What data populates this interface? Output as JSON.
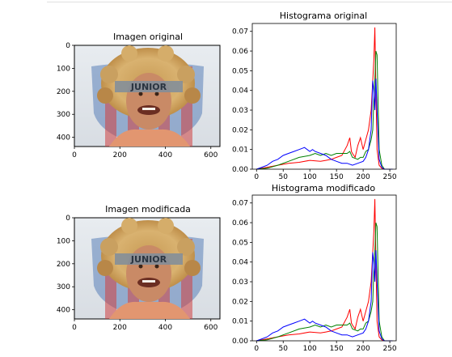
{
  "chart_data": [
    {
      "type": "image",
      "title": "Imagen original",
      "xticks": [
        0,
        200,
        400,
        600
      ],
      "yticks": [
        0,
        100,
        200,
        300,
        400
      ],
      "xlim": [
        0,
        640
      ],
      "ylim": [
        0,
        440
      ]
    },
    {
      "type": "line",
      "title": "Histograma original",
      "xticks": [
        0,
        50,
        100,
        150,
        200,
        250
      ],
      "yticks": [
        0.0,
        0.01,
        0.02,
        0.03,
        0.04,
        0.05,
        0.06,
        0.07
      ],
      "xlim": [
        -8,
        262
      ],
      "ylim": [
        0,
        0.074
      ],
      "series": [
        {
          "color": "#ff0000",
          "x": [
            0,
            20,
            40,
            60,
            80,
            100,
            120,
            130,
            140,
            150,
            160,
            170,
            175,
            178,
            180,
            185,
            190,
            195,
            200,
            205,
            210,
            215,
            218,
            220,
            222,
            224,
            226,
            230,
            235,
            240,
            255
          ],
          "values": [
            0,
            0.001,
            0.002,
            0.003,
            0.0035,
            0.0045,
            0.004,
            0.0045,
            0.005,
            0.006,
            0.007,
            0.012,
            0.016,
            0.009,
            0.008,
            0.006,
            0.012,
            0.016,
            0.01,
            0.015,
            0.02,
            0.03,
            0.045,
            0.055,
            0.072,
            0.04,
            0.01,
            0.002,
            0.0005,
            0,
            0
          ]
        },
        {
          "color": "#008000",
          "x": [
            0,
            20,
            40,
            60,
            80,
            100,
            110,
            120,
            130,
            140,
            150,
            160,
            170,
            175,
            180,
            190,
            195,
            200,
            205,
            210,
            215,
            218,
            220,
            222,
            224,
            226,
            230,
            235,
            240,
            255
          ],
          "values": [
            0,
            0.0005,
            0.002,
            0.004,
            0.006,
            0.007,
            0.008,
            0.007,
            0.008,
            0.007,
            0.008,
            0.008,
            0.008,
            0.009,
            0.006,
            0.005,
            0.006,
            0.006,
            0.009,
            0.01,
            0.015,
            0.02,
            0.035,
            0.045,
            0.06,
            0.058,
            0.01,
            0.002,
            0,
            0
          ]
        },
        {
          "color": "#0000ff",
          "x": [
            0,
            10,
            20,
            30,
            40,
            50,
            60,
            70,
            80,
            90,
            100,
            105,
            110,
            120,
            130,
            140,
            150,
            160,
            170,
            180,
            190,
            200,
            205,
            210,
            215,
            218,
            220,
            222,
            224,
            226,
            230,
            235,
            240,
            255
          ],
          "values": [
            0,
            0.001,
            0.002,
            0.004,
            0.005,
            0.007,
            0.008,
            0.009,
            0.01,
            0.011,
            0.009,
            0.01,
            0.009,
            0.008,
            0.007,
            0.005,
            0.004,
            0.003,
            0.003,
            0.002,
            0.003,
            0.004,
            0.006,
            0.01,
            0.02,
            0.045,
            0.04,
            0.03,
            0.046,
            0.03,
            0.005,
            0.001,
            0,
            0
          ]
        }
      ]
    },
    {
      "type": "image",
      "title": "Imagen modificada",
      "xticks": [
        0,
        200,
        400,
        600
      ],
      "yticks": [
        0,
        100,
        200,
        300,
        400
      ],
      "xlim": [
        0,
        640
      ],
      "ylim": [
        0,
        440
      ]
    },
    {
      "type": "line",
      "title": "Histograma modificado",
      "xticks": [
        0,
        50,
        100,
        150,
        200,
        250
      ],
      "yticks": [
        0.0,
        0.01,
        0.02,
        0.03,
        0.04,
        0.05,
        0.06,
        0.07
      ],
      "xlim": [
        -8,
        262
      ],
      "ylim": [
        0,
        0.074
      ],
      "series": [
        {
          "color": "#ff0000",
          "x": [
            0,
            20,
            40,
            60,
            80,
            100,
            120,
            130,
            140,
            150,
            160,
            170,
            175,
            178,
            180,
            185,
            190,
            195,
            200,
            205,
            210,
            215,
            218,
            220,
            222,
            224,
            226,
            230,
            235,
            240,
            255
          ],
          "values": [
            0,
            0.001,
            0.002,
            0.003,
            0.0035,
            0.0045,
            0.004,
            0.0045,
            0.005,
            0.006,
            0.007,
            0.012,
            0.016,
            0.009,
            0.008,
            0.006,
            0.012,
            0.016,
            0.01,
            0.015,
            0.02,
            0.03,
            0.045,
            0.055,
            0.072,
            0.04,
            0.01,
            0.002,
            0.0005,
            0,
            0
          ]
        },
        {
          "color": "#008000",
          "x": [
            0,
            20,
            40,
            60,
            80,
            100,
            110,
            120,
            130,
            140,
            150,
            160,
            170,
            175,
            180,
            190,
            195,
            200,
            205,
            210,
            215,
            218,
            220,
            222,
            224,
            226,
            230,
            235,
            240,
            255
          ],
          "values": [
            0,
            0.0005,
            0.002,
            0.004,
            0.006,
            0.007,
            0.008,
            0.007,
            0.008,
            0.007,
            0.008,
            0.008,
            0.008,
            0.009,
            0.006,
            0.005,
            0.006,
            0.006,
            0.009,
            0.01,
            0.015,
            0.02,
            0.035,
            0.045,
            0.06,
            0.058,
            0.01,
            0.002,
            0,
            0
          ]
        },
        {
          "color": "#0000ff",
          "x": [
            0,
            10,
            20,
            30,
            40,
            50,
            60,
            70,
            80,
            90,
            100,
            105,
            110,
            120,
            130,
            140,
            150,
            160,
            170,
            180,
            190,
            200,
            205,
            210,
            215,
            218,
            220,
            222,
            224,
            226,
            230,
            235,
            240,
            255
          ],
          "values": [
            0,
            0.001,
            0.002,
            0.004,
            0.005,
            0.007,
            0.008,
            0.009,
            0.01,
            0.011,
            0.009,
            0.01,
            0.009,
            0.008,
            0.007,
            0.005,
            0.004,
            0.003,
            0.003,
            0.002,
            0.003,
            0.004,
            0.006,
            0.01,
            0.02,
            0.045,
            0.04,
            0.03,
            0.046,
            0.03,
            0.005,
            0.001,
            0,
            0
          ]
        }
      ]
    }
  ],
  "image_text": "JUNIOR"
}
